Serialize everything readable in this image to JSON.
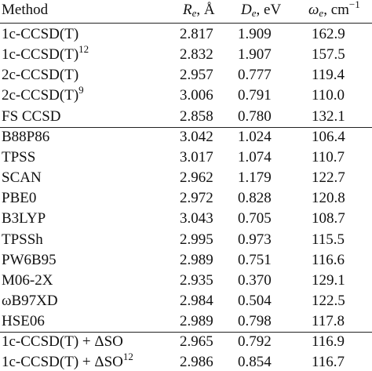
{
  "table": {
    "header": [
      {
        "main": "Method"
      },
      {
        "main": "R",
        "sub": "e",
        "rest": ", Å"
      },
      {
        "main": "D",
        "sub": "e",
        "rest": ", eV"
      },
      {
        "main": "ω",
        "sub": "e",
        "rest": ", cm",
        "sup": "−1"
      }
    ],
    "groups": [
      [
        {
          "method": "1c-CCSD(T)",
          "values": [
            "2.817",
            "1.909",
            "162.9"
          ]
        },
        {
          "method": "1c-CCSD(T)",
          "ref": "12",
          "values": [
            "2.832",
            "1.907",
            "157.5"
          ]
        },
        {
          "method": "2c-CCSD(T)",
          "values": [
            "2.957",
            "0.777",
            "119.4"
          ]
        },
        {
          "method": "2c-CCSD(T)",
          "ref": "9",
          "values": [
            "3.006",
            "0.791",
            "110.0"
          ]
        },
        {
          "method": "FS CCSD",
          "values": [
            "2.858",
            "0.780",
            "132.1"
          ]
        }
      ],
      [
        {
          "method": "B88P86",
          "values": [
            "3.042",
            "1.024",
            "106.4"
          ]
        },
        {
          "method": "TPSS",
          "values": [
            "3.017",
            "1.074",
            "110.7"
          ]
        },
        {
          "method": "SCAN",
          "values": [
            "2.962",
            "1.179",
            "122.7"
          ]
        },
        {
          "method": "PBE0",
          "values": [
            "2.972",
            "0.828",
            "120.8"
          ]
        },
        {
          "method": "B3LYP",
          "values": [
            "3.043",
            "0.705",
            "108.7"
          ]
        },
        {
          "method": "TPSSh",
          "values": [
            "2.995",
            "0.973",
            "115.5"
          ]
        },
        {
          "method": "PW6B95",
          "values": [
            "2.989",
            "0.751",
            "116.6"
          ]
        },
        {
          "method": "M06-2X",
          "values": [
            "2.935",
            "0.370",
            "129.1"
          ]
        },
        {
          "method": "ωB97XD",
          "values": [
            "2.984",
            "0.504",
            "122.5"
          ]
        },
        {
          "method": "HSE06",
          "values": [
            "2.989",
            "0.798",
            "117.8"
          ]
        }
      ],
      [
        {
          "method": "1c-CCSD(T) + ΔSO",
          "values": [
            "2.965",
            "0.792",
            "116.9"
          ]
        },
        {
          "method": "1c-CCSD(T) + ΔSO",
          "ref": "12",
          "values": [
            "2.986",
            "0.854",
            "116.7"
          ]
        }
      ]
    ]
  }
}
